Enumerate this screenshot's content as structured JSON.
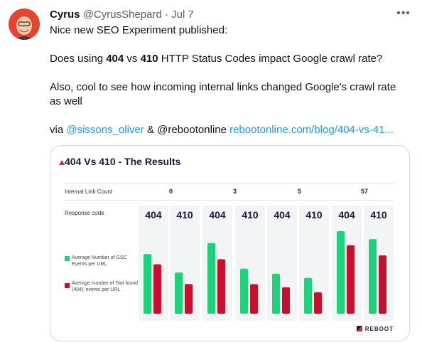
{
  "tweet": {
    "author_name": "Cyrus",
    "handle": "@CyrusShepard",
    "separator": "·",
    "date": "Jul 7",
    "more_icon": "more-horizontal-icon",
    "line1": "Nice new SEO Experiment published:",
    "line2_prefix": "Does using ",
    "line2_bold1": "404",
    "line2_mid1": " vs ",
    "line2_bold2": "410",
    "line2_suffix": " HTTP Status Codes impact Google crawl rate?",
    "line3": "Also, cool to see how incoming internal links changed Google's crawl rate as well",
    "line4_prefix": "via ",
    "mention1": "@sissons_oliver",
    "line4_mid": " & @rebootonline ",
    "url": "rebootonline.com/blog/404-vs-41..."
  },
  "card": {
    "title": "404 Vs 410 - The Results",
    "row1_label": "Internal Link Count",
    "row2_label": "Response code",
    "brand": "REBOOT"
  },
  "chart_data": {
    "type": "bar",
    "title": "404 Vs 410 - The Results",
    "groups_label": "Internal Link Count",
    "codes_label": "Response code",
    "link_counts": [
      "0",
      "3",
      "5",
      "57"
    ],
    "categories": [
      "404",
      "410",
      "404",
      "410",
      "404",
      "410",
      "404",
      "410"
    ],
    "series": [
      {
        "name": "Average Number of GSC Events per URL",
        "color": "#1fd17a",
        "values": [
          8.533,
          5.889,
          10.105,
          6.444,
          5.714,
          5.125,
          11.8,
          10.667
        ],
        "labels": [
          "8.533",
          "5.889",
          "10.105",
          "6.444",
          "5.714",
          "5.125",
          "11.800",
          "10.667"
        ]
      },
      {
        "name": "Average number of 'Not found (404)' events per URL",
        "color": "#c8102e",
        "values": [
          7.071,
          4.25,
          7.789,
          4.222,
          3.786,
          3.063,
          9.8,
          8.333
        ],
        "labels": [
          "7.071",
          "4.250",
          "7.789",
          "4.222",
          "3.786",
          "3.063",
          "9.800",
          "8.333"
        ]
      }
    ],
    "legend_1": "Average Number of GSC Events per URL",
    "legend_2": "Average number of 'Not found (404)' events per URL",
    "ylim": [
      0,
      12
    ]
  }
}
